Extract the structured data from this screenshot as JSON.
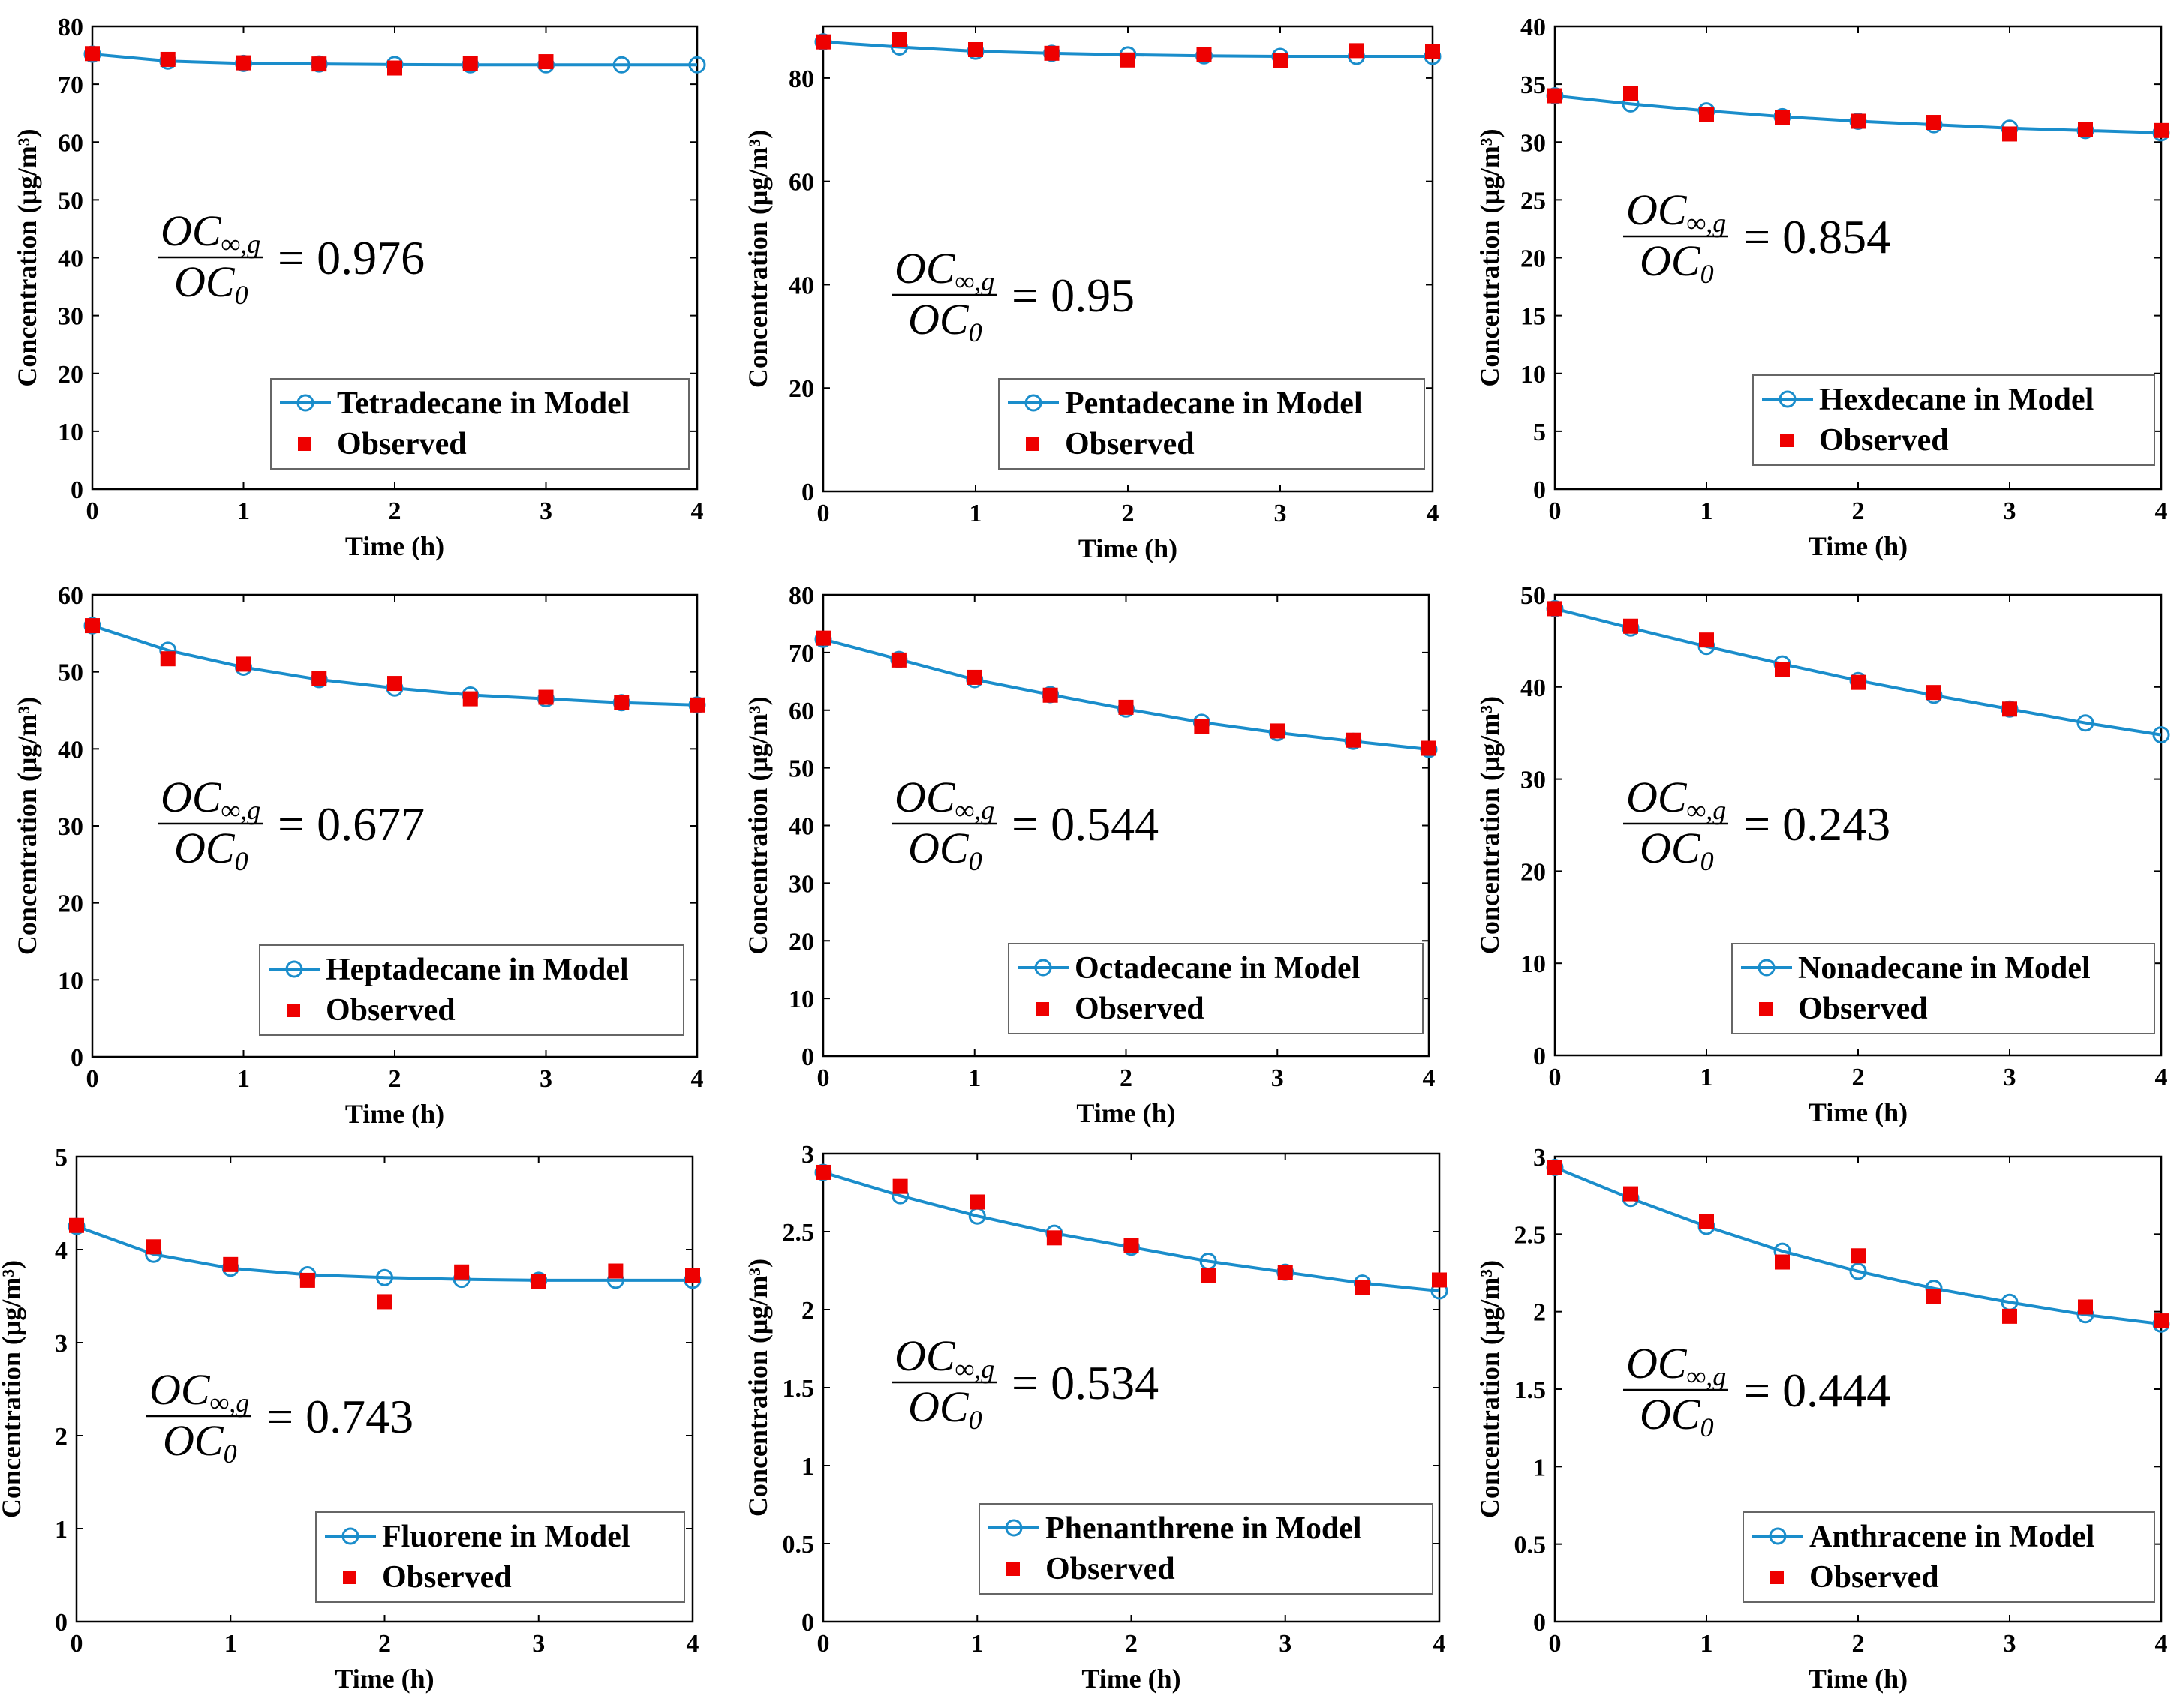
{
  "colors": {
    "model": "#1a8dcb",
    "observed": "#ee0000",
    "axis": "#000000"
  },
  "ratio_label": {
    "numerator": "OC",
    "numerator_sub": "∞,g",
    "denominator": "OC",
    "denominator_sub": "0"
  },
  "chart_data": [
    {
      "type": "line",
      "xlabel": "Time (h)",
      "ylabel": "Concentration (μg/m³)",
      "xlim": [
        0,
        4
      ],
      "ylim": [
        0,
        80
      ],
      "xticks": [
        0,
        1,
        2,
        3,
        4
      ],
      "yticks": [
        0,
        10,
        20,
        30,
        40,
        50,
        60,
        70,
        80
      ],
      "series": [
        {
          "name": "Tetradecane in Model",
          "x": [
            0,
            0.5,
            1,
            1.5,
            2,
            2.5,
            3,
            3.5,
            4
          ],
          "y": [
            75.2,
            74.0,
            73.6,
            73.5,
            73.4,
            73.35,
            73.35,
            73.35,
            73.35
          ]
        },
        {
          "name": "Observed",
          "x": [
            0,
            0.5,
            1,
            1.5,
            2,
            2.5,
            3
          ],
          "y": [
            75.3,
            74.3,
            73.7,
            73.5,
            72.8,
            73.6,
            73.9
          ]
        }
      ],
      "ratio": "0.976"
    },
    {
      "type": "line",
      "xlabel": "Time (h)",
      "ylabel": "Concentration (μg/m³)",
      "xlim": [
        0,
        4
      ],
      "ylim": [
        0,
        90
      ],
      "xticks": [
        0,
        1,
        2,
        3,
        4
      ],
      "yticks": [
        0,
        20,
        40,
        60,
        80
      ],
      "series": [
        {
          "name": "Pentadecane in Model",
          "x": [
            0,
            0.5,
            1,
            1.5,
            2,
            2.5,
            3,
            3.5,
            4
          ],
          "y": [
            87.0,
            86.0,
            85.2,
            84.8,
            84.5,
            84.3,
            84.2,
            84.2,
            84.2
          ]
        },
        {
          "name": "Observed",
          "x": [
            0,
            0.5,
            1,
            1.5,
            2,
            2.5,
            3,
            3.5,
            4
          ],
          "y": [
            87.0,
            87.4,
            85.5,
            84.8,
            83.5,
            84.5,
            83.4,
            85.3,
            85.2
          ]
        }
      ],
      "ratio": "0.95"
    },
    {
      "type": "line",
      "xlabel": "Time (h)",
      "ylabel": "Concentration (μg/m³)",
      "xlim": [
        0,
        4
      ],
      "ylim": [
        0,
        40
      ],
      "xticks": [
        0,
        1,
        2,
        3,
        4
      ],
      "yticks": [
        0,
        5,
        10,
        15,
        20,
        25,
        30,
        35,
        40
      ],
      "series": [
        {
          "name": "Hexdecane in Model",
          "x": [
            0,
            0.5,
            1,
            1.5,
            2,
            2.5,
            3,
            3.5,
            4
          ],
          "y": [
            34.0,
            33.3,
            32.7,
            32.2,
            31.8,
            31.5,
            31.2,
            31.0,
            30.8
          ]
        },
        {
          "name": "Observed",
          "x": [
            0,
            0.5,
            1,
            1.5,
            2,
            2.5,
            3,
            3.5,
            4
          ],
          "y": [
            34.0,
            34.2,
            32.4,
            32.1,
            31.8,
            31.7,
            30.7,
            31.1,
            31.0
          ]
        }
      ],
      "ratio": "0.854"
    },
    {
      "type": "line",
      "xlabel": "Time (h)",
      "ylabel": "Concentration (μg/m³)",
      "xlim": [
        0,
        4
      ],
      "ylim": [
        0,
        60
      ],
      "xticks": [
        0,
        1,
        2,
        3,
        4
      ],
      "yticks": [
        0,
        10,
        20,
        30,
        40,
        50,
        60
      ],
      "series": [
        {
          "name": "Heptadecane in Model",
          "x": [
            0,
            0.5,
            1,
            1.5,
            2,
            2.5,
            3,
            3.5,
            4
          ],
          "y": [
            56.0,
            52.8,
            50.6,
            49.0,
            47.9,
            47.0,
            46.5,
            46.0,
            45.7
          ]
        },
        {
          "name": "Observed",
          "x": [
            0,
            0.5,
            1,
            1.5,
            2,
            2.5,
            3,
            3.5,
            4
          ],
          "y": [
            56.0,
            51.7,
            51.0,
            49.1,
            48.5,
            46.5,
            46.7,
            46.0,
            45.7
          ]
        }
      ],
      "ratio": "0.677"
    },
    {
      "type": "line",
      "xlabel": "Time (h)",
      "ylabel": "Concentration (μg/m³)",
      "xlim": [
        0,
        4
      ],
      "ylim": [
        0,
        80
      ],
      "xticks": [
        0,
        1,
        2,
        3,
        4
      ],
      "yticks": [
        0,
        10,
        20,
        30,
        40,
        50,
        60,
        70,
        80
      ],
      "series": [
        {
          "name": "Octadecane in Model",
          "x": [
            0,
            0.5,
            1,
            1.5,
            2,
            2.5,
            3,
            3.5,
            4
          ],
          "y": [
            72.3,
            68.8,
            65.3,
            62.7,
            60.2,
            57.9,
            56.1,
            54.6,
            53.2
          ]
        },
        {
          "name": "Observed",
          "x": [
            0,
            0.5,
            1,
            1.5,
            2,
            2.5,
            3,
            3.5,
            4
          ],
          "y": [
            72.5,
            68.7,
            65.7,
            62.6,
            60.5,
            57.2,
            56.4,
            54.8,
            53.4
          ]
        }
      ],
      "ratio": "0.544"
    },
    {
      "type": "line",
      "xlabel": "Time (h)",
      "ylabel": "Concentration (μg/m³)",
      "xlim": [
        0,
        4
      ],
      "ylim": [
        0,
        50
      ],
      "xticks": [
        0,
        1,
        2,
        3,
        4
      ],
      "yticks": [
        0,
        10,
        20,
        30,
        40,
        50
      ],
      "series": [
        {
          "name": "Nonadecane in Model",
          "x": [
            0,
            0.5,
            1,
            1.5,
            2,
            2.5,
            3,
            3.5,
            4
          ],
          "y": [
            48.5,
            46.4,
            44.4,
            42.5,
            40.7,
            39.1,
            37.6,
            36.1,
            34.8
          ]
        },
        {
          "name": "Observed",
          "x": [
            0,
            0.5,
            1,
            1.5,
            2,
            2.5,
            3
          ],
          "y": [
            48.5,
            46.6,
            45.1,
            41.9,
            40.5,
            39.4,
            37.6
          ]
        }
      ],
      "ratio": "0.243"
    },
    {
      "type": "line",
      "xlabel": "Time (h)",
      "ylabel": "Concentration (μg/m³)",
      "xlim": [
        0,
        4
      ],
      "ylim": [
        0,
        5
      ],
      "xticks": [
        0,
        1,
        2,
        3,
        4
      ],
      "yticks": [
        0,
        1,
        2,
        3,
        4,
        5
      ],
      "series": [
        {
          "name": "Fluorene in Model",
          "x": [
            0,
            0.5,
            1,
            1.5,
            2,
            2.5,
            3,
            3.5,
            4
          ],
          "y": [
            4.25,
            3.95,
            3.8,
            3.73,
            3.7,
            3.68,
            3.67,
            3.67,
            3.67
          ]
        },
        {
          "name": "Observed",
          "x": [
            0,
            0.5,
            1,
            1.5,
            2,
            2.5,
            3,
            3.5,
            4
          ],
          "y": [
            4.26,
            4.03,
            3.84,
            3.67,
            3.44,
            3.76,
            3.66,
            3.77,
            3.72
          ]
        }
      ],
      "ratio": "0.743"
    },
    {
      "type": "line",
      "xlabel": "Time (h)",
      "ylabel": "Concentration (μg/m³)",
      "xlim": [
        0,
        4
      ],
      "ylim": [
        0,
        3
      ],
      "xticks": [
        0,
        1,
        2,
        3,
        4
      ],
      "yticks": [
        0,
        0.5,
        1,
        1.5,
        2,
        2.5,
        3
      ],
      "series": [
        {
          "name": "Phenanthrene in Model",
          "x": [
            0,
            0.5,
            1,
            1.5,
            2,
            2.5,
            3,
            3.5,
            4
          ],
          "y": [
            2.88,
            2.73,
            2.6,
            2.49,
            2.4,
            2.31,
            2.24,
            2.17,
            2.12
          ]
        },
        {
          "name": "Observed",
          "x": [
            0,
            0.5,
            1,
            1.5,
            2,
            2.5,
            3,
            3.5,
            4
          ],
          "y": [
            2.88,
            2.79,
            2.69,
            2.46,
            2.41,
            2.22,
            2.24,
            2.14,
            2.19
          ]
        }
      ],
      "ratio": "0.534"
    },
    {
      "type": "line",
      "xlabel": "Time (h)",
      "ylabel": "Concentration (μg/m³)",
      "xlim": [
        0,
        4
      ],
      "ylim": [
        0,
        3
      ],
      "xticks": [
        0,
        1,
        2,
        3,
        4
      ],
      "yticks": [
        0,
        0.5,
        1,
        1.5,
        2,
        2.5,
        3
      ],
      "series": [
        {
          "name": "Anthracene in Model",
          "x": [
            0,
            0.5,
            1,
            1.5,
            2,
            2.5,
            3,
            3.5,
            4
          ],
          "y": [
            2.93,
            2.73,
            2.55,
            2.39,
            2.26,
            2.15,
            2.06,
            1.98,
            1.92
          ]
        },
        {
          "name": "Observed",
          "x": [
            0,
            0.5,
            1,
            1.5,
            2,
            2.5,
            3,
            3.5,
            4
          ],
          "y": [
            2.93,
            2.76,
            2.58,
            2.32,
            2.36,
            2.1,
            1.97,
            2.03,
            1.94
          ]
        }
      ],
      "ratio": "0.444"
    }
  ]
}
